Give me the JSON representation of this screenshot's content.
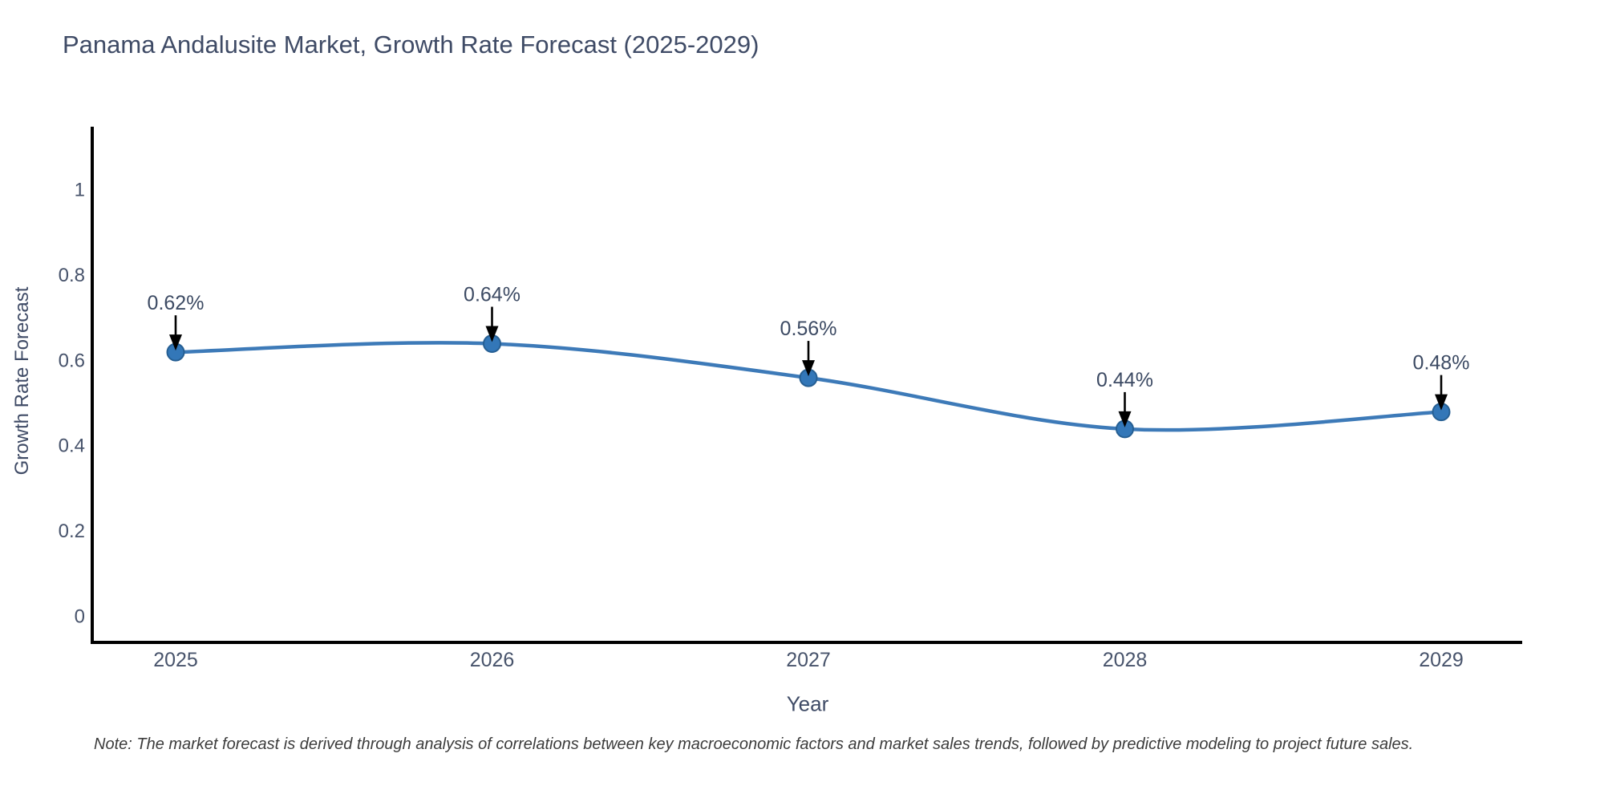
{
  "chart_data": {
    "type": "line",
    "title": "Panama Andalusite Market, Growth Rate Forecast (2025-2029)",
    "xlabel": "Year",
    "ylabel": "Growth Rate Forecast",
    "categories": [
      "2025",
      "2026",
      "2027",
      "2028",
      "2029"
    ],
    "values": [
      0.62,
      0.64,
      0.56,
      0.44,
      0.48
    ],
    "point_labels": [
      "0.62%",
      "0.64%",
      "0.56%",
      "0.44%",
      "0.48%"
    ],
    "y_ticks": [
      "0",
      "0.2",
      "0.4",
      "0.6",
      "0.8",
      "1"
    ],
    "y_tick_values": [
      0,
      0.2,
      0.4,
      0.6,
      0.8,
      1
    ],
    "ylim": [
      0,
      1.15
    ],
    "line_shape": "spline",
    "grid": false,
    "legend": "none",
    "annotation_style": "arrow-down",
    "colors": {
      "line": "#3d7ab8",
      "marker": "#3377b8",
      "marker_border": "#265f93",
      "arrow": "#000000",
      "axis": "#000000",
      "text": "#3f4b66",
      "note_text": "#3c3c3c"
    },
    "note": "Note: The market forecast is derived through analysis of correlations between key macroeconomic factors and market sales trends, followed by predictive modeling to project future sales."
  }
}
